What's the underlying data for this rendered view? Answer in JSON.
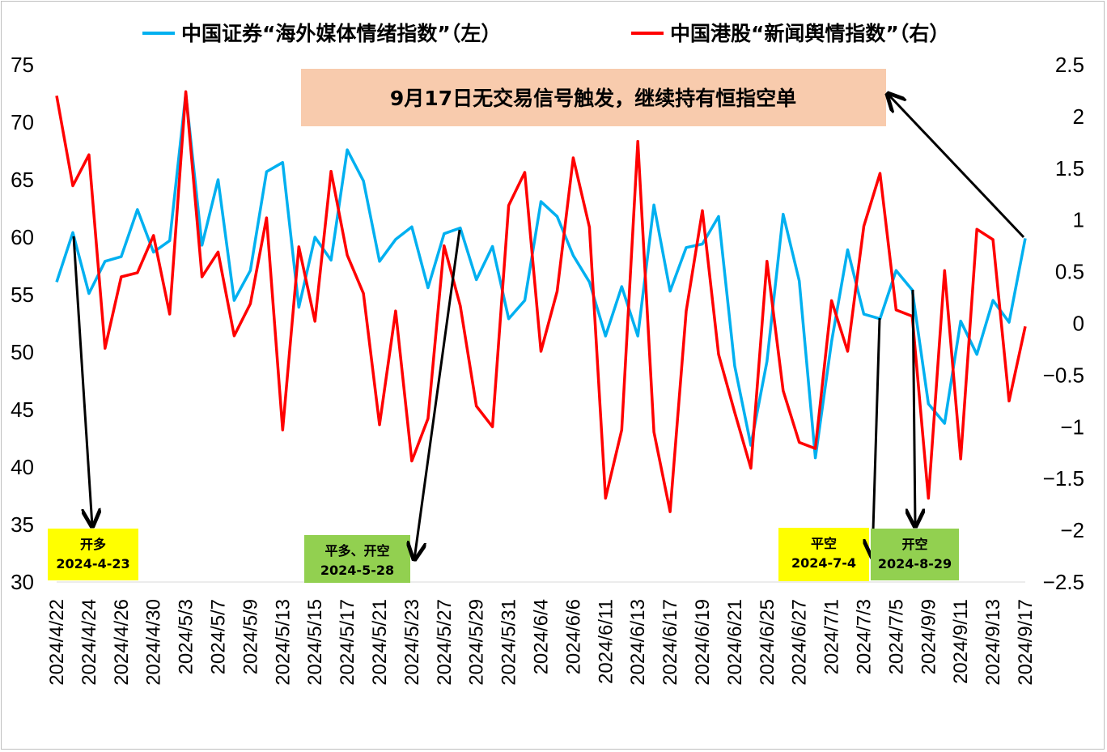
{
  "chart_data": {
    "type": "line",
    "legend": {
      "position": "top",
      "entries": [
        "中国证券“海外媒体情绪指数”（左）",
        "中国港股“新闻舆情指数”（右）"
      ]
    },
    "categories_labeled": [
      "2024/4/22",
      "2024/4/24",
      "2024/4/26",
      "2024/4/30",
      "2024/5/3",
      "2024/5/7",
      "2024/5/9",
      "2024/5/13",
      "2024/5/15",
      "2024/5/17",
      "2024/5/21",
      "2024/5/23",
      "2024/5/27",
      "2024/5/29",
      "2024/5/31",
      "2024/6/4",
      "2024/6/6",
      "2024/6/11",
      "2024/6/13",
      "2024/6/17",
      "2024/6/19",
      "2024/6/21",
      "2024/6/25",
      "2024/6/27",
      "2024/7/1",
      "2024/7/3",
      "2024/7/5",
      "2024/9/9",
      "2024/9/11",
      "2024/9/13",
      "2024/9/17"
    ],
    "y_left": {
      "range": [
        30,
        75
      ],
      "ticks": [
        30,
        35,
        40,
        45,
        50,
        55,
        60,
        65,
        70,
        75
      ]
    },
    "y_right": {
      "range": [
        -2.5,
        2.5
      ],
      "ticks": [
        -2.5,
        -2,
        -1.5,
        -1,
        -0.5,
        0,
        0.5,
        1,
        1.5,
        2,
        2.5
      ]
    },
    "grid": false,
    "series": [
      {
        "name": "中国证券“海外媒体情绪指数”（左）",
        "axis": "left",
        "color": "#00B0F0",
        "values": [
          56.1,
          60.4,
          55.1,
          57.9,
          58.3,
          62.4,
          58.7,
          59.7,
          72.5,
          59.3,
          65.0,
          54.5,
          57.1,
          65.7,
          66.5,
          53.9,
          60.0,
          58.0,
          67.6,
          64.9,
          57.9,
          59.8,
          60.9,
          55.6,
          60.3,
          60.8,
          56.3,
          59.2,
          52.9,
          54.5,
          63.1,
          61.8,
          58.4,
          56.1,
          51.4,
          55.7,
          51.4,
          62.8,
          55.3,
          59.1,
          59.4,
          61.8,
          48.8,
          41.9,
          49.2,
          62.0,
          56.2,
          40.8,
          50.9,
          58.9,
          53.3,
          52.9,
          57.1,
          55.4,
          45.5,
          43.8,
          52.7,
          49.8,
          54.5,
          52.6,
          59.9
        ]
      },
      {
        "name": "中国港股“新闻舆情指数”（右）",
        "axis": "right",
        "color": "#FF0000",
        "values": [
          2.2,
          1.33,
          1.63,
          -0.24,
          0.45,
          0.49,
          0.85,
          0.09,
          2.24,
          0.45,
          0.69,
          -0.12,
          0.19,
          1.02,
          -1.03,
          0.74,
          0.02,
          1.47,
          0.66,
          0.29,
          -0.98,
          0.12,
          -1.33,
          -0.92,
          0.75,
          0.17,
          -0.8,
          -1.0,
          1.14,
          1.46,
          -0.27,
          0.31,
          1.6,
          0.93,
          -1.69,
          -1.03,
          1.76,
          -1.05,
          -1.82,
          0.12,
          1.09,
          -0.3,
          -0.86,
          -1.4,
          0.6,
          -0.65,
          -1.15,
          -1.21,
          0.22,
          -0.27,
          0.94,
          1.45,
          0.13,
          0.07,
          -1.69,
          0.51,
          -1.31,
          0.91,
          0.81,
          -0.75,
          -0.03
        ]
      }
    ]
  },
  "annotation": {
    "text": "9月17日无交易信号触发，继续持有恒指空单",
    "bg": "#F8CBAD"
  },
  "signals": [
    {
      "lines": [
        "开多",
        "2024-4-23"
      ],
      "bg": "#FFFF00"
    },
    {
      "lines": [
        "平多、开空",
        "2024-5-28"
      ],
      "bg": "#92D050"
    },
    {
      "lines": [
        "平空",
        "2024-7-4"
      ],
      "bg": "#FFFF00"
    },
    {
      "lines": [
        "开空",
        "2024-8-29"
      ],
      "bg": "#92D050"
    }
  ]
}
